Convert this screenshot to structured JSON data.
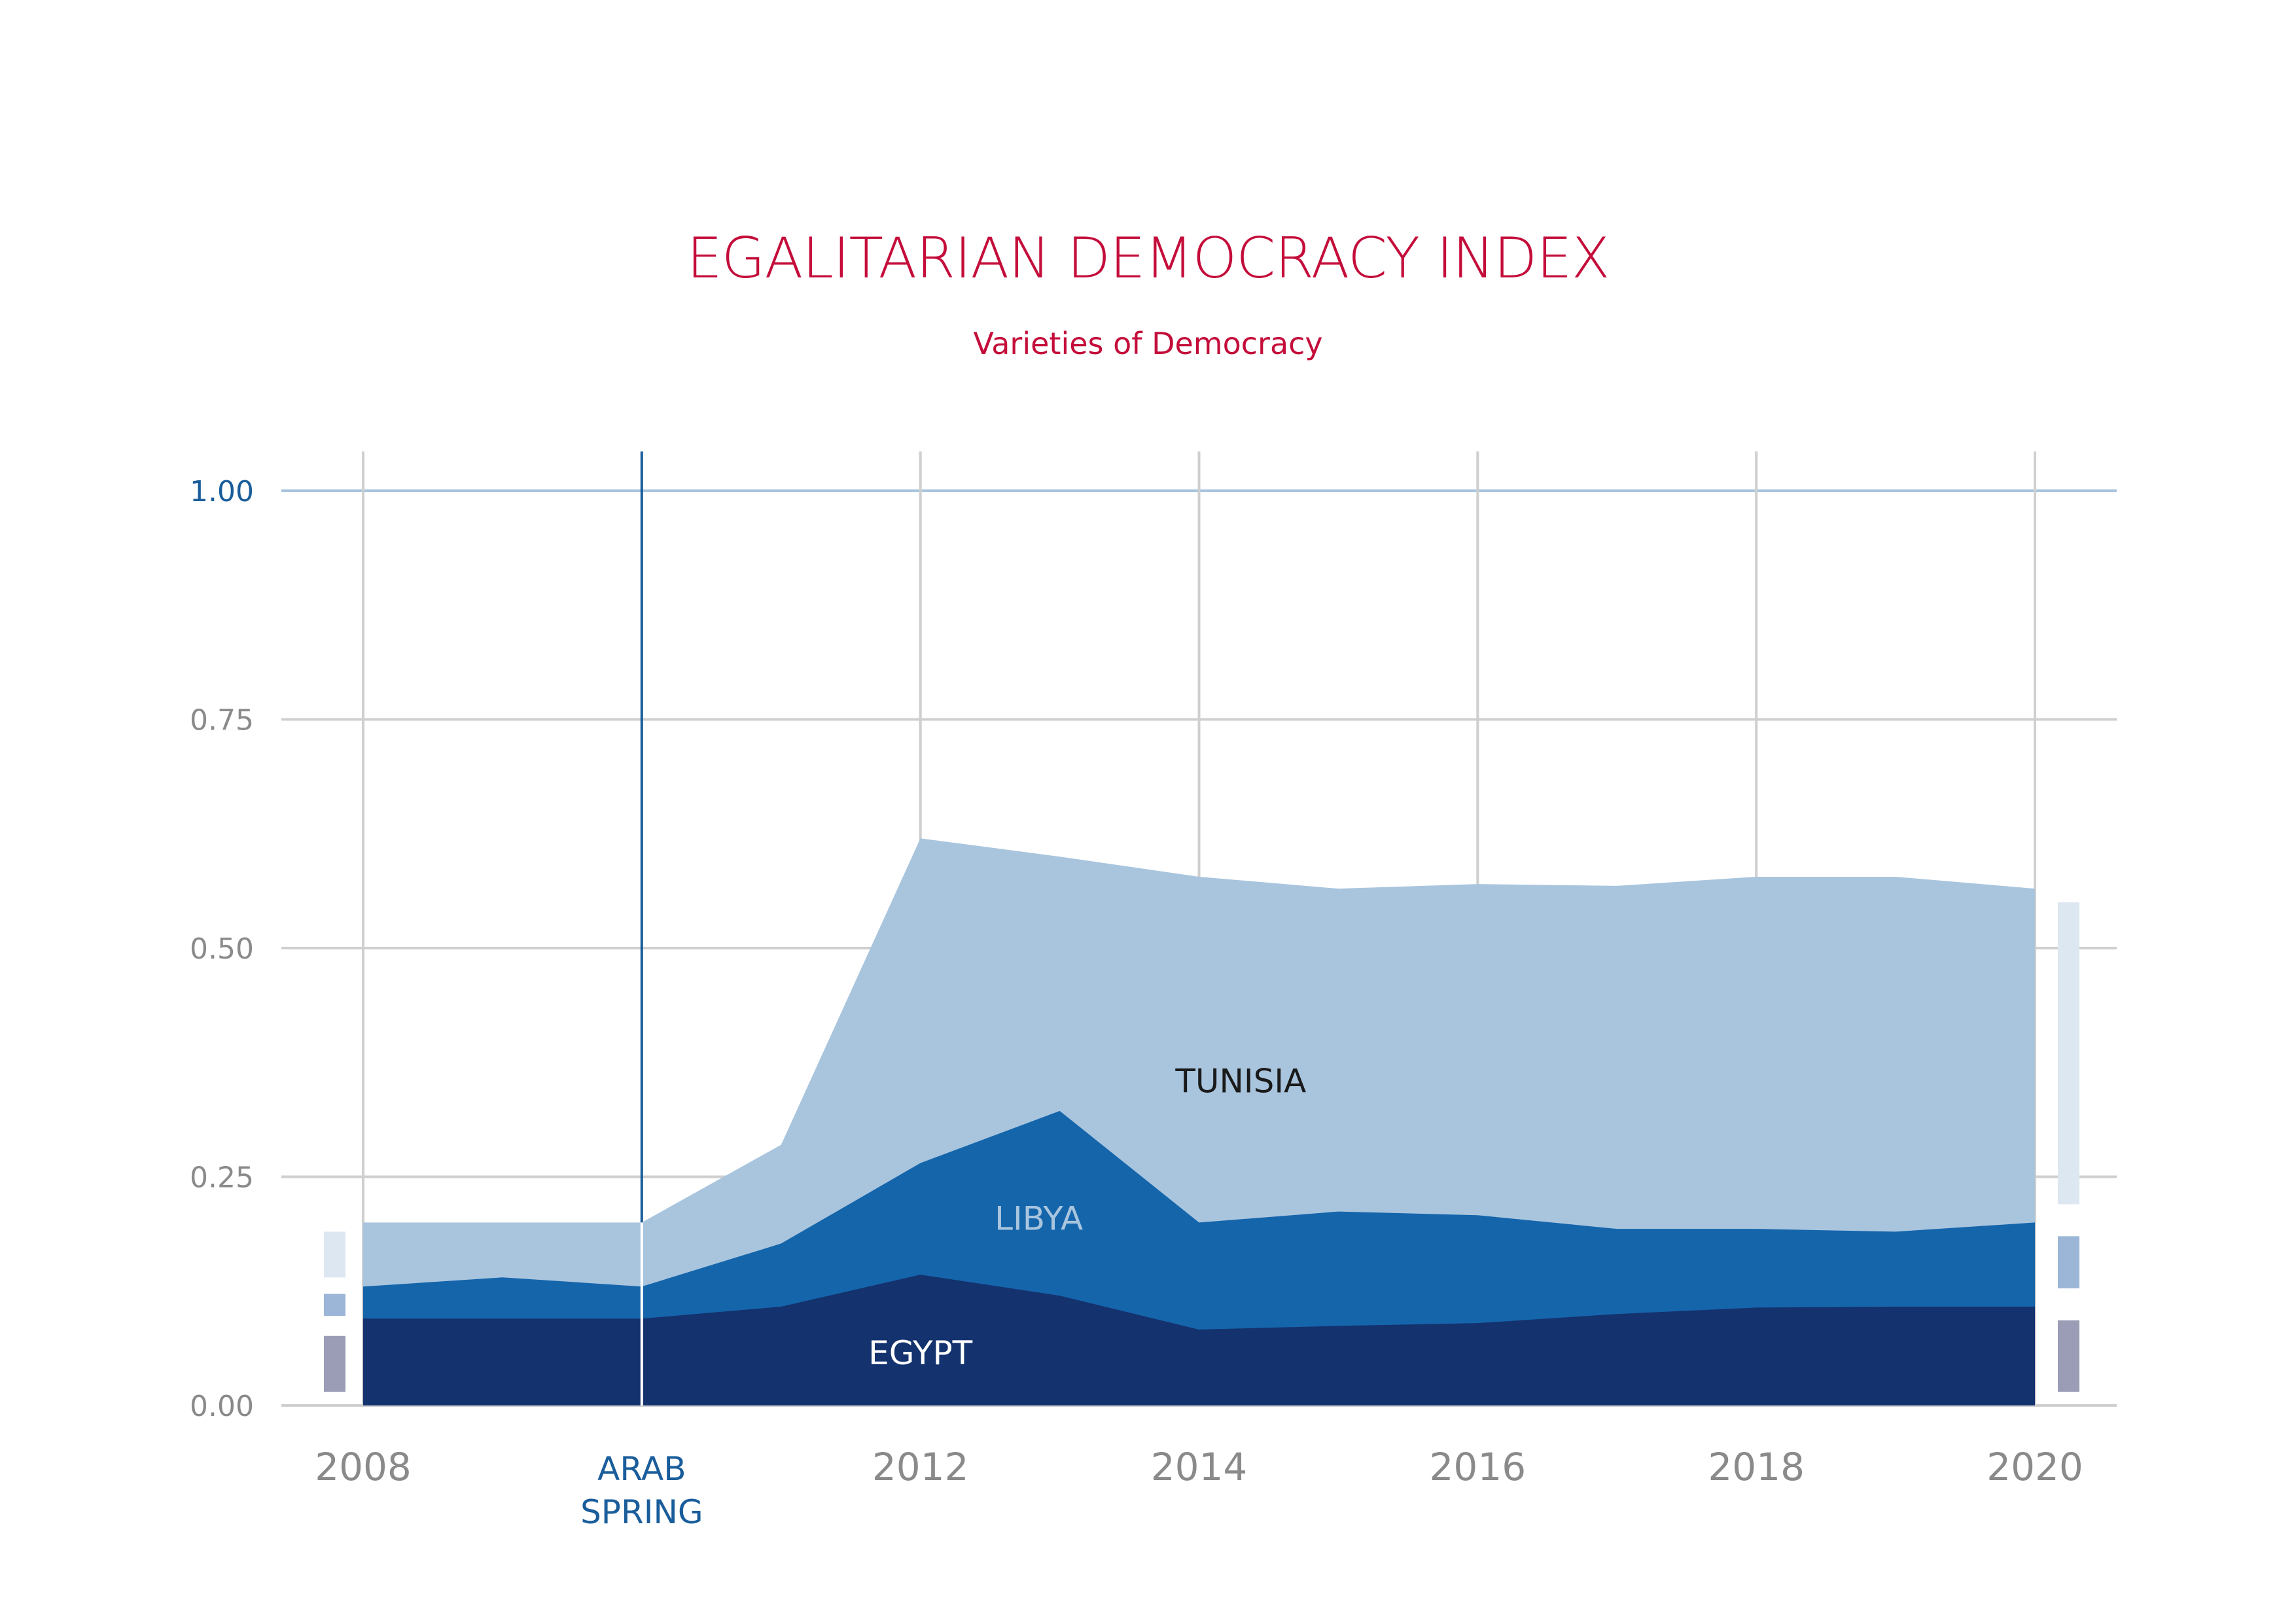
{
  "header": {
    "title": "EGALITARIAN DEMOCRACY INDEX",
    "subtitle": "Varieties of Democracy"
  },
  "chart_data": {
    "type": "area",
    "stacked": false,
    "title": "EGALITARIAN DEMOCRACY INDEX",
    "subtitle": "Varieties of Democracy",
    "xlabel": "",
    "ylabel": "",
    "x": [
      2008,
      2009,
      2010,
      2011,
      2012,
      2013,
      2014,
      2015,
      2016,
      2017,
      2018,
      2019,
      2020
    ],
    "x_ticks": [
      {
        "value": 2008,
        "label": "2008"
      },
      {
        "value": 2010,
        "label": "ARAB SPRING",
        "lines": [
          "ARAB",
          "SPRING"
        ],
        "highlight": true
      },
      {
        "value": 2012,
        "label": "2012"
      },
      {
        "value": 2014,
        "label": "2014"
      },
      {
        "value": 2016,
        "label": "2016"
      },
      {
        "value": 2018,
        "label": "2018"
      },
      {
        "value": 2020,
        "label": "2020"
      }
    ],
    "y_ticks": [
      "0.00",
      "0.25",
      "0.50",
      "0.75",
      "1.00"
    ],
    "ylim": [
      0,
      1
    ],
    "grid": true,
    "event_marker": {
      "x": 2010,
      "label": "ARAB SPRING"
    },
    "series": [
      {
        "name": "TUNISIA",
        "color": "#a9c5de",
        "label_color": "#1a1a1a",
        "values": [
          0.2,
          0.2,
          0.2,
          0.285,
          0.62,
          0.6,
          0.578,
          0.565,
          0.57,
          0.568,
          0.578,
          0.578,
          0.565
        ]
      },
      {
        "name": "LIBYA",
        "color": "#1565ab",
        "label_color": "#a9c5de",
        "values": [
          0.13,
          0.14,
          0.13,
          0.177,
          0.265,
          0.322,
          0.2,
          0.212,
          0.208,
          0.193,
          0.193,
          0.19,
          0.2
        ]
      },
      {
        "name": "EGYPT",
        "color": "#14326e",
        "label_color": "#ffffff",
        "values": [
          0.095,
          0.095,
          0.095,
          0.108,
          0.143,
          0.12,
          0.083,
          0.087,
          0.09,
          0.1,
          0.107,
          0.108,
          0.108
        ]
      }
    ],
    "range_bars": [
      {
        "series": "TUNISIA",
        "side": "left",
        "color": "#dce7f2",
        "range": [
          0.19,
          0.14
        ]
      },
      {
        "series": "LIBYA",
        "side": "left",
        "color": "#9bb6d7",
        "range": [
          0.122,
          0.098
        ]
      },
      {
        "series": "EGYPT",
        "side": "left",
        "color": "#9b9db6",
        "range": [
          0.076,
          0.015
        ]
      },
      {
        "series": "TUNISIA",
        "side": "right",
        "color": "#dce7f2",
        "range": [
          0.55,
          0.22
        ]
      },
      {
        "series": "LIBYA",
        "side": "right",
        "color": "#9bb6d7",
        "range": [
          0.185,
          0.128
        ]
      },
      {
        "series": "EGYPT",
        "side": "right",
        "color": "#9b9db6",
        "range": [
          0.093,
          0.015
        ]
      }
    ],
    "series_label_positions": [
      {
        "name": "TUNISIA",
        "x": 2014.3,
        "y": 0.355
      },
      {
        "name": "LIBYA",
        "x": 2012.85,
        "y": 0.205
      },
      {
        "name": "EGYPT",
        "x": 2012.0,
        "y": 0.058
      }
    ]
  }
}
